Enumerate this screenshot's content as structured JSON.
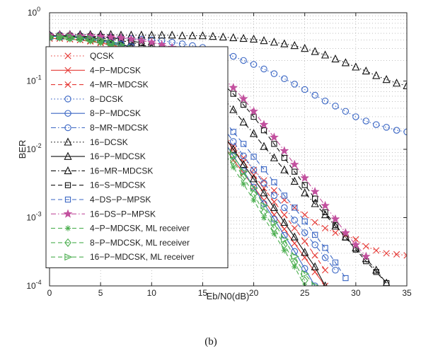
{
  "chart_data": {
    "type": "line",
    "xlabel": "Eb/N0(dB)",
    "ylabel": "BER",
    "caption": "(b)",
    "xlim": [
      0,
      35
    ],
    "ylim": [
      0.0001,
      1
    ],
    "yscale": "log",
    "x_ticks": [
      "0",
      "5",
      "10",
      "15",
      "20",
      "25",
      "30",
      "35"
    ],
    "y_ticks": [
      {
        "base": "10",
        "exp": "0"
      },
      {
        "base": "10",
        "exp": "-1"
      },
      {
        "base": "10",
        "exp": "-2"
      },
      {
        "base": "10",
        "exp": "-3"
      },
      {
        "base": "10",
        "exp": "-4"
      }
    ],
    "grid": true,
    "legend_position": "left",
    "series": [
      {
        "name": "QCSK",
        "color": "#e53935",
        "dash": "dotted",
        "marker": "x",
        "x": [
          0,
          1,
          2,
          3,
          4,
          5,
          6,
          7,
          8,
          9,
          10,
          11,
          12,
          13,
          14,
          15,
          16,
          17,
          18,
          19,
          20,
          21,
          22,
          23,
          24,
          25,
          26,
          27,
          28,
          29,
          30,
          31,
          32,
          33,
          34,
          35
        ],
        "y": [
          0.42,
          0.42,
          0.41,
          0.4,
          0.39,
          0.37,
          0.35,
          0.33,
          0.3,
          0.27,
          0.23,
          0.19,
          0.15,
          0.11,
          0.075,
          0.048,
          0.03,
          0.018,
          0.011,
          0.0075,
          0.005,
          0.0035,
          0.0025,
          0.0018,
          0.0014,
          0.0011,
          0.00085,
          0.0007,
          0.0006,
          0.00055,
          0.00048,
          0.00038,
          0.00033,
          0.0003,
          0.00029,
          0.00028
        ]
      },
      {
        "name": "4−P−MDCSK",
        "color": "#e53935",
        "dash": "solid",
        "marker": "x",
        "x": [
          0,
          1,
          2,
          3,
          4,
          5,
          6,
          7,
          8,
          9,
          10,
          11,
          12,
          13,
          14,
          15,
          16,
          17,
          18,
          19,
          20,
          21,
          22,
          23,
          24,
          25,
          26,
          27
        ],
        "y": [
          0.42,
          0.42,
          0.41,
          0.4,
          0.38,
          0.36,
          0.34,
          0.31,
          0.28,
          0.24,
          0.2,
          0.16,
          0.12,
          0.085,
          0.057,
          0.036,
          0.021,
          0.012,
          0.007,
          0.0045,
          0.0028,
          0.0018,
          0.0011,
          0.00068,
          0.00042,
          0.00026,
          0.00016,
          0.0001
        ]
      },
      {
        "name": "4−MR−MDCSK",
        "color": "#e53935",
        "dash": "dashed",
        "marker": "x",
        "x": [
          0,
          1,
          2,
          3,
          4,
          5,
          6,
          7,
          8,
          9,
          10,
          11,
          12,
          13,
          14,
          15,
          16,
          17,
          18,
          19,
          20,
          21,
          22,
          23,
          24,
          25,
          26,
          27
        ],
        "y": [
          0.42,
          0.42,
          0.41,
          0.4,
          0.39,
          0.37,
          0.35,
          0.32,
          0.29,
          0.25,
          0.21,
          0.17,
          0.13,
          0.095,
          0.065,
          0.042,
          0.026,
          0.016,
          0.01,
          0.0065,
          0.0042,
          0.0027,
          0.0017,
          0.0011,
          0.0007,
          0.00045,
          0.00028,
          0.00017
        ]
      },
      {
        "name": "8−DCSK",
        "color": "#3a66c4",
        "dash": "dotted",
        "marker": "circle",
        "x": [
          0,
          1,
          2,
          3,
          4,
          5,
          6,
          7,
          8,
          9,
          10,
          11,
          12,
          13,
          14,
          15,
          16,
          17,
          18,
          19,
          20,
          21,
          22,
          23,
          24,
          25,
          26,
          27,
          28,
          29,
          30,
          31,
          32,
          33,
          34,
          35
        ],
        "y": [
          0.47,
          0.47,
          0.46,
          0.46,
          0.45,
          0.45,
          0.44,
          0.43,
          0.42,
          0.41,
          0.4,
          0.39,
          0.37,
          0.35,
          0.33,
          0.31,
          0.28,
          0.255,
          0.23,
          0.2,
          0.175,
          0.15,
          0.128,
          0.108,
          0.09,
          0.075,
          0.062,
          0.051,
          0.043,
          0.036,
          0.03,
          0.026,
          0.023,
          0.021,
          0.019,
          0.018
        ]
      },
      {
        "name": "8−P−MDCSK",
        "color": "#3a66c4",
        "dash": "solid",
        "marker": "circle",
        "x": [
          0,
          1,
          2,
          3,
          4,
          5,
          6,
          7,
          8,
          9,
          10,
          11,
          12,
          13,
          14,
          15,
          16,
          17,
          18,
          19,
          20,
          21,
          22,
          23,
          24,
          25,
          26
        ],
        "y": [
          0.45,
          0.45,
          0.44,
          0.43,
          0.41,
          0.39,
          0.36,
          0.33,
          0.29,
          0.25,
          0.21,
          0.17,
          0.13,
          0.092,
          0.062,
          0.04,
          0.024,
          0.014,
          0.008,
          0.0048,
          0.0028,
          0.0016,
          0.00095,
          0.00055,
          0.00032,
          0.00018,
          0.0001
        ]
      },
      {
        "name": "8−MR−MDCSK",
        "color": "#3a66c4",
        "dash": "dashdot",
        "marker": "circle",
        "x": [
          0,
          1,
          2,
          3,
          4,
          5,
          6,
          7,
          8,
          9,
          10,
          11,
          12,
          13,
          14,
          15,
          16,
          17,
          18,
          19,
          20,
          21,
          22,
          23,
          24,
          25,
          26,
          27,
          28
        ],
        "y": [
          0.45,
          0.45,
          0.44,
          0.43,
          0.42,
          0.4,
          0.37,
          0.34,
          0.31,
          0.27,
          0.23,
          0.19,
          0.15,
          0.11,
          0.078,
          0.052,
          0.033,
          0.021,
          0.013,
          0.008,
          0.005,
          0.0032,
          0.0021,
          0.0014,
          0.00092,
          0.0006,
          0.0004,
          0.00026,
          0.00017
        ]
      },
      {
        "name": "16−DCSK",
        "color": "#111111",
        "dash": "dotted",
        "marker": "triangle",
        "x": [
          0,
          1,
          2,
          3,
          4,
          5,
          6,
          7,
          8,
          9,
          10,
          11,
          12,
          13,
          14,
          15,
          16,
          17,
          18,
          19,
          20,
          21,
          22,
          23,
          24,
          25,
          26,
          27,
          28,
          29,
          30,
          31,
          32,
          33,
          34,
          35
        ],
        "y": [
          0.48,
          0.48,
          0.48,
          0.48,
          0.48,
          0.48,
          0.48,
          0.47,
          0.47,
          0.47,
          0.47,
          0.47,
          0.47,
          0.46,
          0.46,
          0.46,
          0.45,
          0.44,
          0.43,
          0.42,
          0.41,
          0.39,
          0.37,
          0.35,
          0.33,
          0.3,
          0.27,
          0.24,
          0.21,
          0.185,
          0.16,
          0.14,
          0.12,
          0.105,
          0.093,
          0.085
        ]
      },
      {
        "name": "16−P−MDCSK",
        "color": "#111111",
        "dash": "solid",
        "marker": "triangle",
        "x": [
          0,
          1,
          2,
          3,
          4,
          5,
          6,
          7,
          8,
          9,
          10,
          11,
          12,
          13,
          14,
          15,
          16,
          17,
          18,
          19,
          20,
          21,
          22,
          23,
          24,
          25,
          26,
          27
        ],
        "y": [
          0.46,
          0.46,
          0.45,
          0.44,
          0.43,
          0.41,
          0.38,
          0.35,
          0.31,
          0.27,
          0.22,
          0.18,
          0.14,
          0.1,
          0.07,
          0.046,
          0.028,
          0.017,
          0.01,
          0.006,
          0.0037,
          0.0023,
          0.0014,
          0.00085,
          0.00052,
          0.00031,
          0.00019,
          0.0001
        ]
      },
      {
        "name": "16−MR−MDCSK",
        "color": "#111111",
        "dash": "dashdot",
        "marker": "triangle",
        "x": [
          0,
          1,
          2,
          3,
          4,
          5,
          6,
          7,
          8,
          9,
          10,
          11,
          12,
          13,
          14,
          15,
          16,
          17,
          18,
          19,
          20,
          21,
          22,
          23,
          24,
          25,
          26,
          27,
          28,
          29,
          30,
          31,
          32,
          33
        ],
        "y": [
          0.46,
          0.46,
          0.45,
          0.45,
          0.44,
          0.43,
          0.41,
          0.39,
          0.37,
          0.34,
          0.31,
          0.27,
          0.23,
          0.19,
          0.15,
          0.11,
          0.08,
          0.056,
          0.038,
          0.025,
          0.017,
          0.011,
          0.0075,
          0.005,
          0.0034,
          0.0023,
          0.0016,
          0.0011,
          0.00075,
          0.00052,
          0.00036,
          0.00025,
          0.00017,
          0.00011
        ]
      },
      {
        "name": "16−S−MDCSK",
        "color": "#111111",
        "dash": "dashed",
        "marker": "square",
        "x": [
          0,
          1,
          2,
          3,
          4,
          5,
          6,
          7,
          8,
          9,
          10,
          11,
          12,
          13,
          14,
          15,
          16,
          17,
          18,
          19,
          20,
          21,
          22,
          23,
          24,
          25,
          26,
          27,
          28,
          29,
          30,
          31,
          32,
          33
        ],
        "y": [
          0.46,
          0.46,
          0.46,
          0.45,
          0.45,
          0.44,
          0.43,
          0.41,
          0.39,
          0.36,
          0.33,
          0.3,
          0.27,
          0.23,
          0.19,
          0.15,
          0.12,
          0.09,
          0.065,
          0.045,
          0.03,
          0.019,
          0.012,
          0.0075,
          0.0047,
          0.003,
          0.0019,
          0.0012,
          0.00078,
          0.00051,
          0.00034,
          0.00023,
          0.00016,
          0.00011
        ]
      },
      {
        "name": "4−DS−P−MPSK",
        "color": "#3a66c4",
        "dash": "dashed",
        "marker": "square",
        "x": [
          0,
          1,
          2,
          3,
          4,
          5,
          6,
          7,
          8,
          9,
          10,
          11,
          12,
          13,
          14,
          15,
          16,
          17,
          18,
          19,
          20,
          21,
          22,
          23,
          24,
          25,
          26,
          27,
          28,
          29
        ],
        "y": [
          0.44,
          0.44,
          0.44,
          0.43,
          0.42,
          0.4,
          0.38,
          0.35,
          0.32,
          0.28,
          0.24,
          0.2,
          0.16,
          0.12,
          0.088,
          0.062,
          0.042,
          0.028,
          0.018,
          0.012,
          0.0078,
          0.0051,
          0.0033,
          0.0021,
          0.0014,
          0.00088,
          0.00056,
          0.00036,
          0.00022,
          0.00013
        ]
      },
      {
        "name": "16−DS−P−MPSK",
        "color": "#c2509e",
        "dash": "dashdot",
        "marker": "star",
        "x": [
          0,
          1,
          2,
          3,
          4,
          5,
          6,
          7,
          8,
          9,
          10,
          11,
          12,
          13,
          14,
          15,
          16,
          17,
          18,
          19,
          20,
          21,
          22,
          23,
          24,
          25,
          26,
          27,
          28,
          29,
          30,
          31
        ],
        "y": [
          0.47,
          0.47,
          0.47,
          0.46,
          0.46,
          0.45,
          0.44,
          0.43,
          0.41,
          0.39,
          0.37,
          0.34,
          0.31,
          0.27,
          0.23,
          0.19,
          0.15,
          0.11,
          0.08,
          0.055,
          0.036,
          0.023,
          0.015,
          0.0095,
          0.006,
          0.0038,
          0.0024,
          0.0015,
          0.00095,
          0.0006,
          0.0004,
          0.00027
        ]
      },
      {
        "name": "4−P−MDCSK, ML receiver",
        "color": "#4caf50",
        "dash": "dashed",
        "marker": "asterisk",
        "x": [
          0,
          1,
          2,
          3,
          4,
          5,
          6,
          7,
          8,
          9,
          10,
          11,
          12,
          13,
          14,
          15,
          16,
          17,
          18,
          19,
          20,
          21,
          22,
          23,
          24,
          25
        ],
        "y": [
          0.42,
          0.42,
          0.41,
          0.4,
          0.38,
          0.36,
          0.33,
          0.3,
          0.26,
          0.22,
          0.18,
          0.14,
          0.1,
          0.07,
          0.046,
          0.029,
          0.017,
          0.0097,
          0.0055,
          0.0031,
          0.0018,
          0.001,
          0.00058,
          0.00033,
          0.00019,
          0.0001
        ]
      },
      {
        "name": "8−P−MDCSK, ML receiver",
        "color": "#4caf50",
        "dash": "dashed",
        "marker": "diamond",
        "x": [
          0,
          1,
          2,
          3,
          4,
          5,
          6,
          7,
          8,
          9,
          10,
          11,
          12,
          13,
          14,
          15,
          16,
          17,
          18,
          19,
          20,
          21,
          22,
          23,
          24,
          25
        ],
        "y": [
          0.44,
          0.44,
          0.43,
          0.42,
          0.4,
          0.38,
          0.35,
          0.32,
          0.28,
          0.24,
          0.2,
          0.16,
          0.12,
          0.083,
          0.055,
          0.035,
          0.021,
          0.012,
          0.0068,
          0.0039,
          0.0022,
          0.0012,
          0.0007,
          0.0004,
          0.00022,
          0.00012
        ]
      },
      {
        "name": "16−P−MDCSK, ML receiver",
        "color": "#4caf50",
        "dash": "dashed",
        "marker": "triangle-right",
        "x": [
          0,
          1,
          2,
          3,
          4,
          5,
          6,
          7,
          8,
          9,
          10,
          11,
          12,
          13,
          14,
          15,
          16,
          17,
          18,
          19,
          20,
          21,
          22,
          23,
          24,
          25,
          26
        ],
        "y": [
          0.45,
          0.45,
          0.44,
          0.43,
          0.42,
          0.4,
          0.37,
          0.34,
          0.3,
          0.26,
          0.21,
          0.17,
          0.13,
          0.092,
          0.062,
          0.04,
          0.024,
          0.014,
          0.0082,
          0.0047,
          0.0027,
          0.0015,
          0.00085,
          0.00048,
          0.00027,
          0.00015,
          0.0001
        ]
      }
    ]
  }
}
